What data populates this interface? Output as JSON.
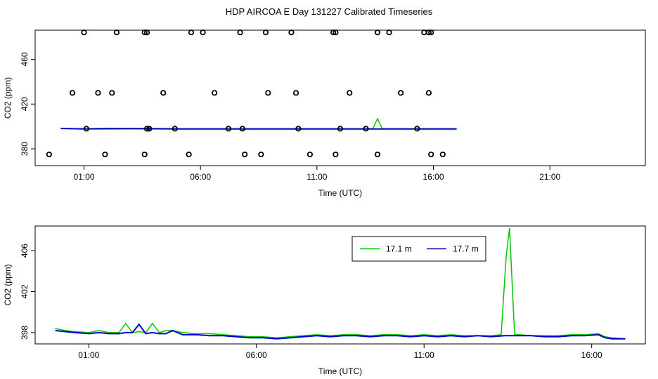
{
  "title": "HDP AIRCOA E  Day 131227  Calibrated Timeseries",
  "colors": {
    "green": "#00c800",
    "blue": "#0000cd",
    "axis": "#000000"
  },
  "chart_data": [
    {
      "type": "line",
      "panel": "top",
      "xlabel": "Time (UTC)",
      "ylabel": "CO2 (ppm)",
      "xlim": [
        -1.1,
        25.1
      ],
      "ylim": [
        365,
        486
      ],
      "x_ticks": [
        1,
        6,
        11,
        16,
        21
      ],
      "x_tick_labels": [
        "01:00",
        "06:00",
        "11:00",
        "16:00",
        "21:00"
      ],
      "y_ticks": [
        380,
        420,
        460
      ],
      "y_tick_labels": [
        "380",
        "420",
        "460"
      ],
      "grid": false,
      "series": [
        {
          "color": "green",
          "x": [
            0,
            1,
            2,
            3,
            4,
            5,
            6,
            7,
            8,
            9,
            10,
            11,
            12,
            13,
            13.4,
            13.6,
            13.8,
            14,
            15,
            16,
            17
          ],
          "y": [
            398,
            398,
            398.5,
            398.3,
            398.2,
            398,
            398,
            398,
            398,
            398,
            398,
            398,
            398,
            398,
            398,
            407,
            398,
            398,
            398,
            398,
            398
          ]
        },
        {
          "color": "blue",
          "x": [
            0,
            1,
            2,
            3,
            4,
            5,
            6,
            7,
            8,
            9,
            10,
            11,
            12,
            13,
            14,
            15,
            16,
            17
          ],
          "y": [
            398.2,
            397.8,
            397.9,
            398,
            397.9,
            397.8,
            397.7,
            397.8,
            397.7,
            397.8,
            397.8,
            397.7,
            397.8,
            397.7,
            397.7,
            397.8,
            397.7,
            397.7
          ]
        }
      ],
      "points": {
        "x": [
          1.0,
          2.4,
          3.6,
          3.7,
          5.6,
          6.1,
          7.7,
          8.8,
          9.9,
          11.7,
          11.8,
          13.6,
          14.1,
          15.6,
          15.8,
          15.9,
          0.5,
          1.6,
          2.2,
          4.4,
          6.6,
          8.9,
          10.1,
          12.4,
          14.6,
          15.8,
          1.1,
          3.7,
          3.8,
          4.9,
          7.2,
          7.8,
          10.2,
          12.0,
          13.1,
          15.3,
          -0.5,
          1.9,
          3.6,
          5.5,
          7.9,
          8.6,
          10.7,
          11.8,
          13.6,
          15.9,
          16.4
        ],
        "y": [
          484,
          484,
          484,
          484,
          484,
          484,
          484,
          484,
          484,
          484,
          484,
          484,
          484,
          484,
          484,
          484,
          430,
          430,
          430,
          430,
          430,
          430,
          430,
          430,
          430,
          430,
          398,
          398,
          398,
          398,
          398,
          398,
          398,
          398,
          398,
          398,
          375,
          375,
          375,
          375,
          375,
          375,
          375,
          375,
          375,
          375,
          375
        ]
      }
    },
    {
      "type": "line",
      "panel": "bottom",
      "xlabel": "Time (UTC)",
      "ylabel": "CO2 (ppm)",
      "xlim": [
        -0.6,
        17.6
      ],
      "ylim": [
        396.9,
        408.4
      ],
      "x_ticks": [
        1,
        6,
        11,
        16
      ],
      "x_tick_labels": [
        "01:00",
        "06:00",
        "11:00",
        "16:00"
      ],
      "y_ticks": [
        398,
        402,
        406
      ],
      "y_tick_labels": [
        "398",
        "402",
        "406"
      ],
      "grid": false,
      "legend": {
        "placement": "top-right",
        "entries": [
          "17.1 m",
          "17.7 m"
        ]
      },
      "series": [
        {
          "name": "17.1 m",
          "color": "green",
          "x": [
            0,
            0.3,
            0.6,
            1.0,
            1.3,
            1.6,
            1.9,
            2.1,
            2.3,
            2.5,
            2.7,
            2.9,
            3.1,
            3.3,
            3.5,
            3.8,
            4.2,
            4.6,
            5.0,
            5.4,
            5.8,
            6.2,
            6.6,
            7.0,
            7.4,
            7.8,
            8.2,
            8.6,
            9.0,
            9.4,
            9.8,
            10.2,
            10.6,
            11.0,
            11.4,
            11.8,
            12.2,
            12.6,
            13.0,
            13.3,
            13.45,
            13.55,
            13.7,
            13.85,
            14.2,
            14.6,
            15.0,
            15.4,
            15.8,
            16.2,
            16.4,
            16.6,
            17.0
          ],
          "y": [
            398.4,
            398.2,
            398.1,
            398.0,
            398.2,
            398.0,
            398.0,
            398.9,
            398.0,
            398.1,
            398.0,
            398.9,
            398.0,
            398.2,
            398.2,
            398.0,
            397.9,
            397.9,
            397.8,
            397.7,
            397.6,
            397.6,
            397.5,
            397.6,
            397.7,
            397.8,
            397.7,
            397.8,
            397.8,
            397.7,
            397.8,
            397.8,
            397.7,
            397.8,
            397.7,
            397.8,
            397.7,
            397.7,
            397.7,
            397.8,
            405.5,
            408.2,
            397.8,
            397.8,
            397.7,
            397.7,
            397.7,
            397.8,
            397.8,
            397.9,
            397.6,
            397.5,
            397.4
          ]
        },
        {
          "name": "17.7 m",
          "color": "blue",
          "x": [
            0,
            0.3,
            0.6,
            1.0,
            1.3,
            1.6,
            1.9,
            2.1,
            2.3,
            2.5,
            2.7,
            2.9,
            3.1,
            3.3,
            3.5,
            3.8,
            4.2,
            4.6,
            5.0,
            5.4,
            5.8,
            6.2,
            6.6,
            7.0,
            7.4,
            7.8,
            8.2,
            8.6,
            9.0,
            9.4,
            9.8,
            10.2,
            10.6,
            11.0,
            11.4,
            11.8,
            12.2,
            12.6,
            13.0,
            13.4,
            13.8,
            14.2,
            14.6,
            15.0,
            15.4,
            15.8,
            16.2,
            16.4,
            16.6,
            17.0
          ],
          "y": [
            398.2,
            398.1,
            398.0,
            397.9,
            398.0,
            397.9,
            397.9,
            398.0,
            398.0,
            398.8,
            397.9,
            398.0,
            397.9,
            397.9,
            398.2,
            397.8,
            397.8,
            397.7,
            397.7,
            397.6,
            397.5,
            397.5,
            397.4,
            397.5,
            397.6,
            397.7,
            397.6,
            397.7,
            397.7,
            397.6,
            397.7,
            397.7,
            397.6,
            397.7,
            397.6,
            397.7,
            397.6,
            397.7,
            397.6,
            397.7,
            397.7,
            397.7,
            397.6,
            397.6,
            397.7,
            397.7,
            397.8,
            397.5,
            397.4,
            397.4
          ]
        }
      ]
    }
  ]
}
